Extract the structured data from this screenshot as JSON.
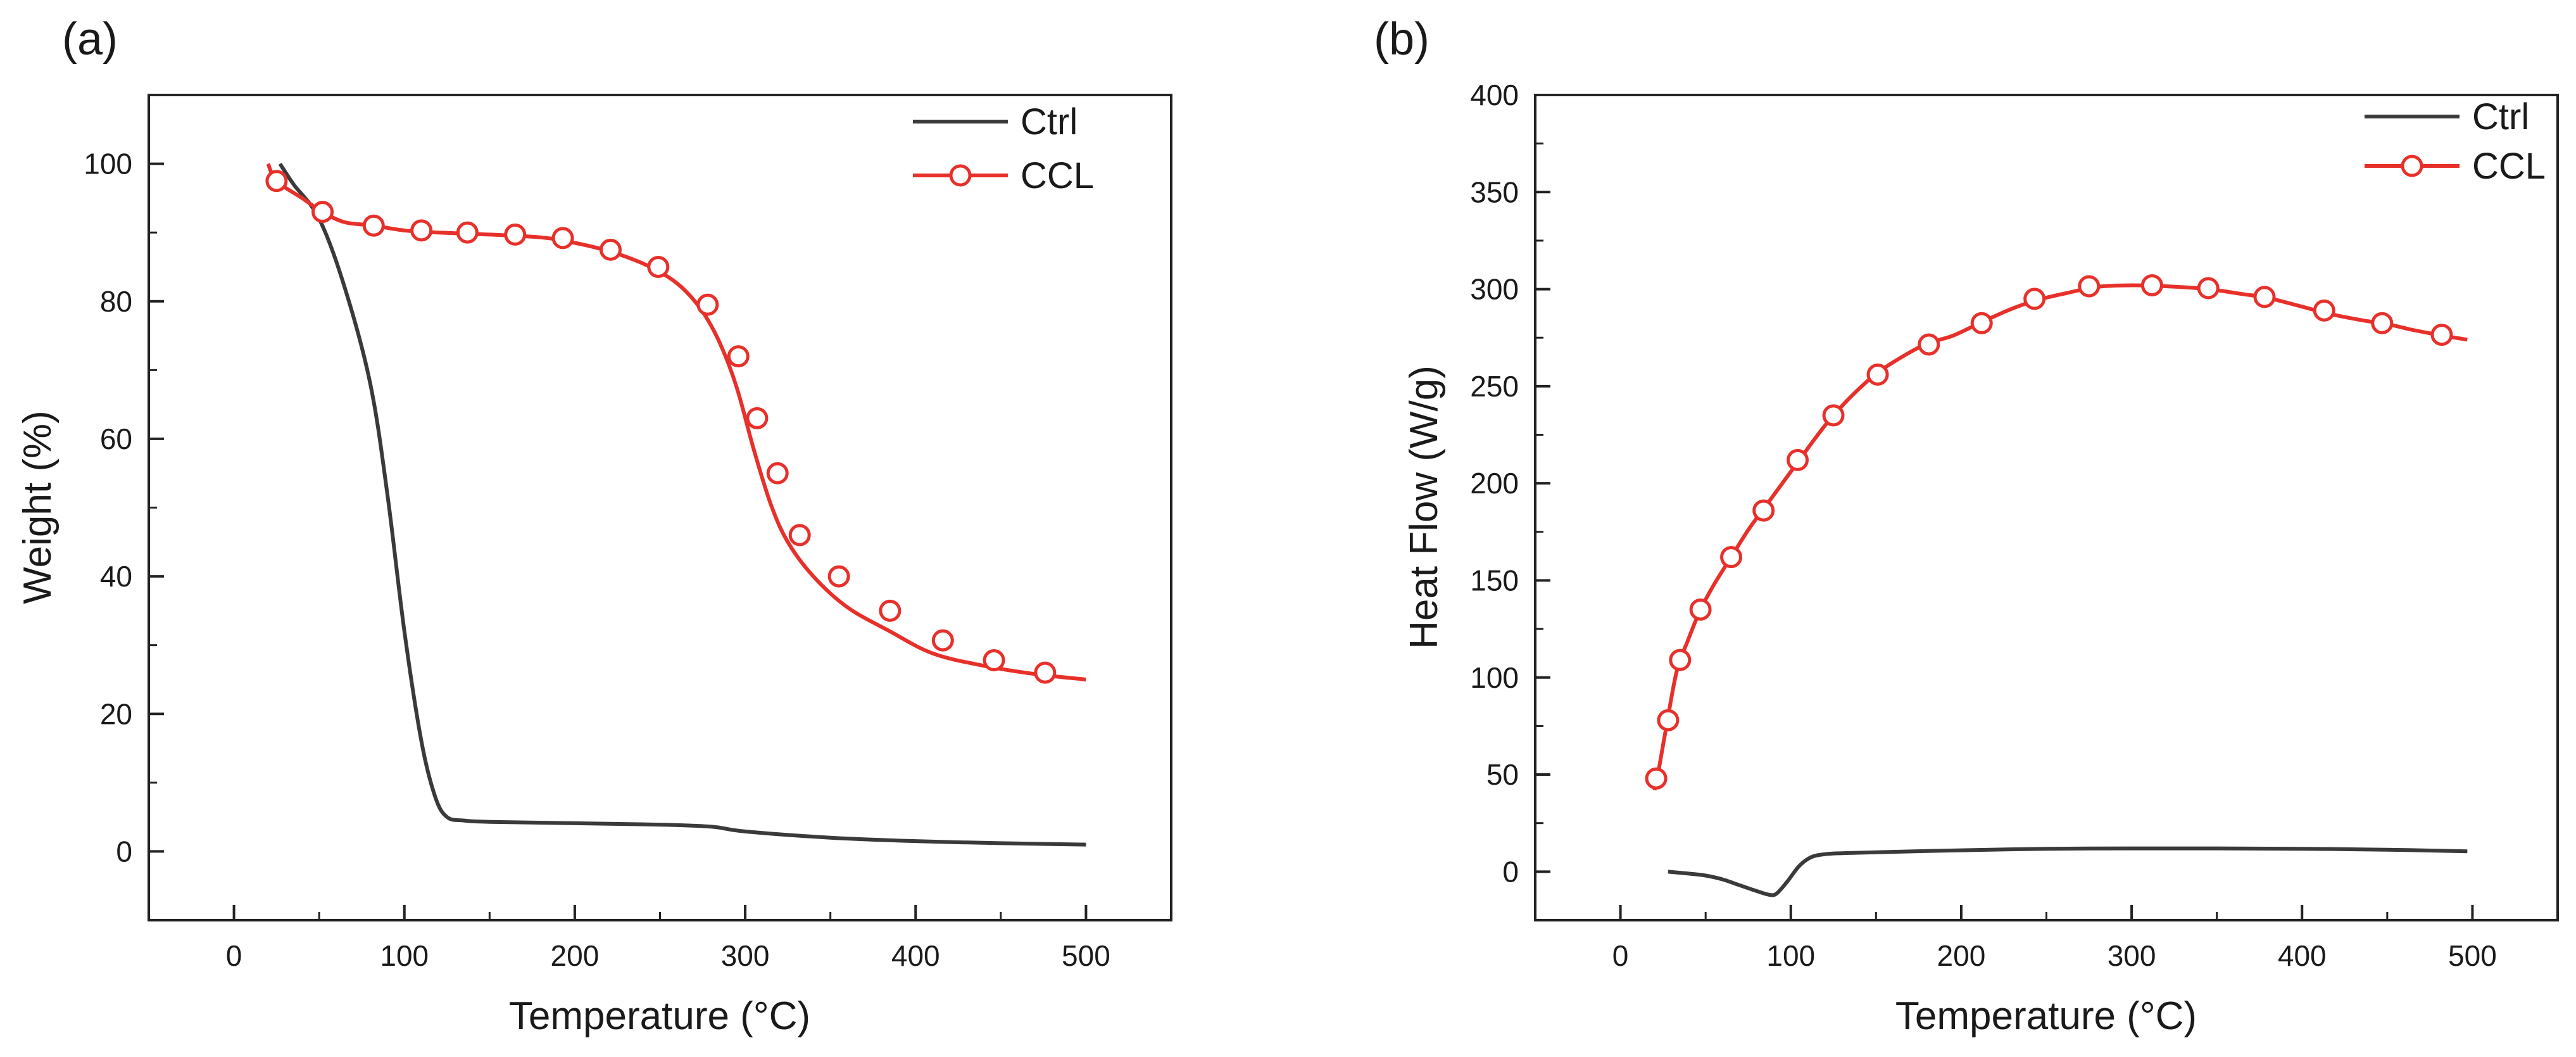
{
  "chart_data": [
    {
      "type": "line",
      "panel_label": "(a)",
      "xlabel": "Temperature (°C)",
      "ylabel": "Weight (%)",
      "xlim": [
        -50,
        550
      ],
      "ylim": [
        -10,
        110
      ],
      "xticks": [
        0,
        100,
        200,
        300,
        400,
        500
      ],
      "yticks": [
        0,
        20,
        40,
        60,
        80,
        100
      ],
      "xtick_labels": [
        "0",
        "100",
        "200",
        "300",
        "400",
        "500"
      ],
      "ytick_labels": [
        "0",
        "20",
        "40",
        "60",
        "80",
        "100"
      ],
      "grid": false,
      "legend_position": "top-right",
      "series": [
        {
          "name": "Ctrl",
          "color": "#3a3a3a",
          "marker": "none",
          "x": [
            27,
            35,
            50,
            65,
            80,
            90,
            100,
            110,
            118,
            125,
            135,
            150,
            200,
            250,
            280,
            300,
            350,
            400,
            450,
            500
          ],
          "y": [
            100,
            97,
            92,
            82,
            68,
            52,
            32,
            16,
            8,
            5,
            4.5,
            4.3,
            4.1,
            3.9,
            3.6,
            2.9,
            2.0,
            1.5,
            1.2,
            1.0
          ],
          "markers_x": [],
          "markers_y": []
        },
        {
          "name": "CCL",
          "color": "#e8302a",
          "marker": "circle",
          "x": [
            20,
            25,
            40,
            52,
            65,
            82,
            100,
            120,
            150,
            180,
            200,
            220,
            240,
            255,
            265,
            275,
            285,
            295,
            305,
            315,
            325,
            340,
            360,
            385,
            410,
            440,
            470,
            500
          ],
          "y": [
            100,
            97.5,
            95,
            93,
            91.5,
            91,
            90.3,
            90,
            89.7,
            89.3,
            88.5,
            87.3,
            85.5,
            83.5,
            81.5,
            78.5,
            74,
            67.5,
            58.5,
            50.5,
            45,
            40,
            35.5,
            32,
            28.8,
            27,
            25.8,
            25
          ],
          "markers_x": [
            25,
            52,
            82,
            110,
            137,
            165,
            193,
            221,
            249,
            278,
            296,
            307,
            319,
            332,
            355,
            385,
            416,
            446,
            476
          ],
          "markers_y": [
            97.5,
            93,
            91,
            90.3,
            90,
            89.7,
            89.2,
            87.5,
            85,
            79.5,
            72,
            63,
            55,
            46,
            40,
            35,
            30.7,
            27.8,
            26
          ]
        }
      ]
    },
    {
      "type": "line",
      "panel_label": "(b)",
      "xlabel": "Temperature (°C)",
      "ylabel": "Heat Flow (W/g)",
      "xlim": [
        -50,
        550
      ],
      "ylim": [
        -25,
        400
      ],
      "xticks": [
        0,
        100,
        200,
        300,
        400,
        500
      ],
      "yticks": [
        0,
        50,
        100,
        150,
        200,
        250,
        300,
        350,
        400
      ],
      "xtick_labels": [
        "0",
        "100",
        "200",
        "300",
        "400",
        "500"
      ],
      "ytick_labels": [
        "0",
        "50",
        "100",
        "150",
        "200",
        "250",
        "300",
        "350",
        "400"
      ],
      "grid": false,
      "legend_position": "top-right",
      "series": [
        {
          "name": "Ctrl",
          "color": "#3a3a3a",
          "marker": "none",
          "x": [
            28,
            40,
            50,
            60,
            70,
            80,
            88,
            92,
            98,
            105,
            112,
            120,
            130,
            150,
            200,
            250,
            300,
            350,
            400,
            450,
            497
          ],
          "y": [
            0,
            -1,
            -2,
            -4,
            -7,
            -10,
            -12,
            -11,
            -5,
            3,
            7.5,
            9,
            9.5,
            10,
            11,
            11.8,
            12,
            12,
            11.8,
            11.3,
            10.5
          ],
          "markers_x": [],
          "markers_y": []
        },
        {
          "name": "CCL",
          "color": "#e8302a",
          "marker": "circle",
          "x": [
            20,
            22,
            27,
            33,
            40,
            47,
            55,
            65,
            75,
            85,
            95,
            105,
            115,
            125,
            138,
            151,
            165,
            180,
            195,
            212,
            230,
            245,
            262,
            280,
            300,
            320,
            345,
            365,
            380,
            400,
            415,
            435,
            450,
            465,
            483,
            497
          ],
          "y": [
            42,
            50,
            75,
            103,
            120,
            135,
            148,
            162,
            176,
            188,
            200,
            212,
            224,
            235,
            247,
            257,
            265,
            272,
            276,
            283,
            290,
            294.5,
            298,
            301.2,
            302,
            301.5,
            300,
            297.5,
            295.5,
            291,
            287.5,
            284,
            282,
            279,
            276,
            274
          ],
          "markers_x": [
            21,
            28,
            35,
            47,
            65,
            84,
            104,
            125,
            151,
            181,
            212,
            243,
            275,
            312,
            345,
            378,
            413,
            447,
            482
          ],
          "markers_y": [
            48,
            78,
            109,
            135,
            162,
            186,
            212,
            235,
            256,
            271.5,
            282.5,
            295,
            301.5,
            302,
            300.5,
            296,
            289,
            282.5,
            276.5
          ]
        }
      ]
    }
  ]
}
